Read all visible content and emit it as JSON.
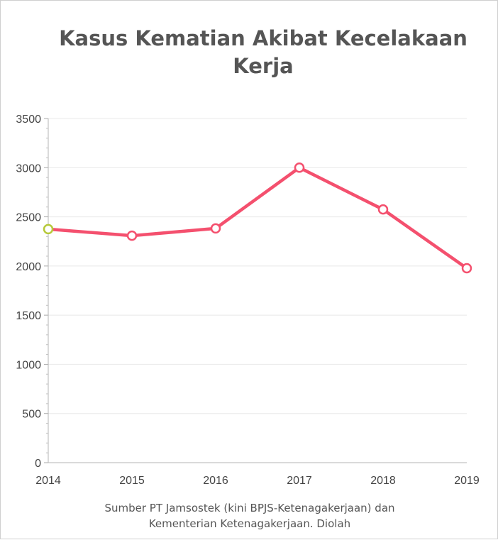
{
  "chart_data": {
    "type": "line",
    "title": "Kasus Kematian Akibat Kecelakaan Kerja",
    "categories": [
      "2014",
      "2015",
      "2016",
      "2017",
      "2018",
      "2019"
    ],
    "series": [
      {
        "values": [
          2375,
          2308,
          2382,
          3000,
          2575,
          1977
        ]
      }
    ],
    "ylim": [
      0,
      3500
    ],
    "yticks": [
      0,
      500,
      1000,
      1500,
      2000,
      2500,
      3000,
      3500
    ],
    "grid": true,
    "colors": {
      "line": "#f4506e",
      "highlight_marker": "#b6c93a",
      "grid": "#e8e8e8"
    },
    "source": {
      "line1": "Sumber PT Jamsostek (kini BPJS-Ketenagakerjaan) dan",
      "line2": "Kementerian Ketenagakerjaan. Diolah"
    }
  }
}
